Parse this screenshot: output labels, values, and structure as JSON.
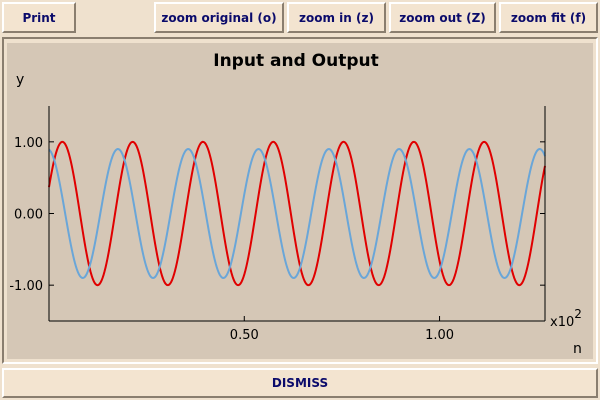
{
  "toolbar": {
    "print_label": "Print",
    "zoom_original_label": "zoom original (o)",
    "zoom_in_label": "zoom in (z)",
    "zoom_out_label": "zoom out (Z)",
    "zoom_fit_label": "zoom fit (f)"
  },
  "footer": {
    "dismiss_label": "DISMISS"
  },
  "chart_data": {
    "type": "line",
    "title": "Input and Output",
    "xlabel": "n",
    "ylabel": "y",
    "x_scale_note": "x10",
    "x_scale_exp": "2",
    "xlim": [
      0,
      1.27
    ],
    "ylim": [
      -1.5,
      1.5
    ],
    "x_ticks": [
      0.5,
      1.0
    ],
    "x_tick_labels": [
      "0.50",
      "1.00"
    ],
    "y_ticks": [
      1.0,
      0.0,
      -1.0
    ],
    "y_tick_labels": [
      "1.00",
      "0.00",
      "-1.00"
    ],
    "series": [
      {
        "kind": "sine",
        "color": "#e00000",
        "amplitude": 1.0,
        "period": 0.18,
        "phase_cycles": 0.06
      },
      {
        "kind": "sine",
        "color": "#6aa6d8",
        "amplitude": 0.9,
        "period": 0.18,
        "phase_cycles": 0.27
      }
    ]
  }
}
